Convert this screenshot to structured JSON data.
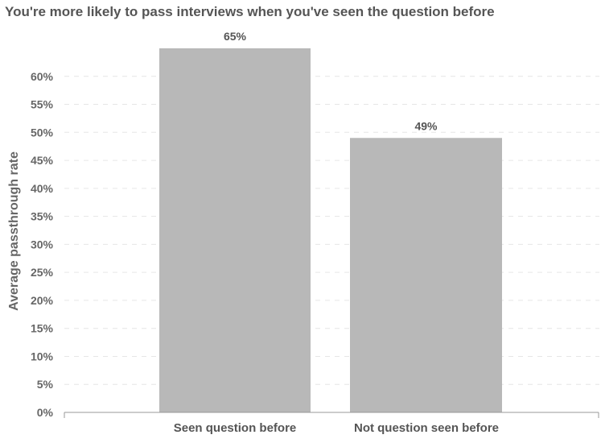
{
  "chart_data": {
    "type": "bar",
    "title": "You're more likely to pass interviews when you've seen the question before",
    "xlabel": "",
    "ylabel": "Average passthrough rate",
    "categories": [
      "Seen question before",
      "Not question seen before"
    ],
    "values": [
      65,
      49
    ],
    "data_labels": [
      "65%",
      "49%"
    ],
    "ylim": [
      0,
      65
    ],
    "yticks": [
      0,
      5,
      10,
      15,
      20,
      25,
      30,
      35,
      40,
      45,
      50,
      55,
      60
    ],
    "ytick_labels": [
      "0%",
      "5%",
      "10%",
      "15%",
      "20%",
      "25%",
      "30%",
      "35%",
      "40%",
      "45%",
      "50%",
      "55%",
      "60%"
    ],
    "grid": true,
    "legend": false,
    "bar_color": "#b8b8b8",
    "grid_color": "#e6e6e6",
    "text_color": "#555555"
  }
}
